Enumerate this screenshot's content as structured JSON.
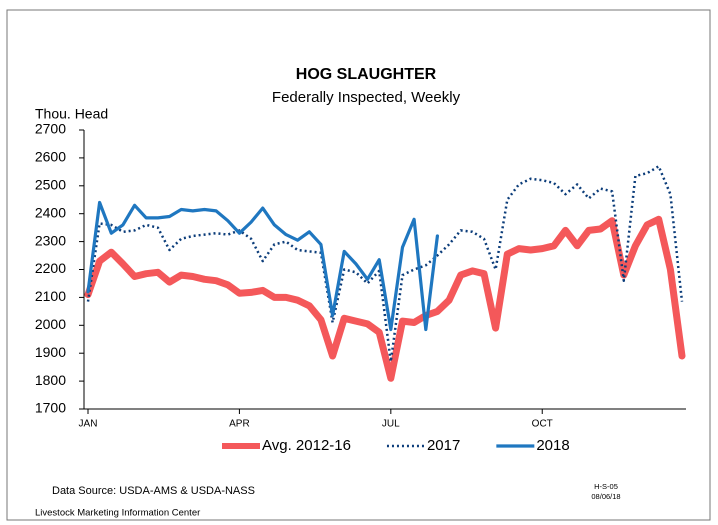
{
  "chart_data": {
    "type": "line",
    "title": "HOG SLAUGHTER",
    "subtitle": "Federally Inspected, Weekly",
    "y_label": "Thou. Head",
    "categories": [
      "JAN",
      null,
      null,
      null,
      null,
      null,
      null,
      null,
      null,
      null,
      null,
      null,
      null,
      "APR",
      null,
      null,
      null,
      null,
      null,
      null,
      null,
      null,
      null,
      null,
      null,
      null,
      "JUL",
      null,
      null,
      null,
      null,
      null,
      null,
      null,
      null,
      null,
      null,
      null,
      null,
      "OCT",
      null,
      null,
      null,
      null,
      null,
      null,
      null,
      null,
      null,
      null,
      null,
      null
    ],
    "series": [
      {
        "name": "Avg. 2012-16",
        "color": "#f4585a",
        "line_style": "solid",
        "width": 7,
        "values": [
          2110,
          2230,
          2262,
          2220,
          2175,
          2185,
          2190,
          2155,
          2180,
          2175,
          2165,
          2160,
          2145,
          2115,
          2118,
          2125,
          2100,
          2100,
          2090,
          2070,
          2020,
          1890,
          2025,
          2015,
          2005,
          1975,
          1810,
          2015,
          2010,
          2035,
          2050,
          2090,
          2180,
          2195,
          2185,
          1990,
          2255,
          2275,
          2270,
          2275,
          2285,
          2340,
          2285,
          2340,
          2345,
          2375,
          2180,
          2285,
          2360,
          2380,
          2200,
          1890
        ]
      },
      {
        "name": "2017",
        "color": "#0c3d7a",
        "line_style": "dotted",
        "width": 2.5,
        "values": [
          2085,
          2365,
          2360,
          2335,
          2340,
          2360,
          2350,
          2270,
          2310,
          2320,
          2325,
          2330,
          2325,
          2340,
          2310,
          2230,
          2290,
          2300,
          2270,
          2265,
          2260,
          2010,
          2200,
          2190,
          2150,
          2195,
          1870,
          2180,
          2200,
          2215,
          2250,
          2290,
          2340,
          2335,
          2310,
          2200,
          2450,
          2505,
          2525,
          2520,
          2510,
          2470,
          2505,
          2455,
          2490,
          2480,
          2160,
          2535,
          2545,
          2570,
          2470,
          2085
        ]
      },
      {
        "name": "2018",
        "color": "#1f77c0",
        "line_style": "solid",
        "width": 3.2,
        "values": [
          2120,
          2440,
          2330,
          2360,
          2430,
          2385,
          2385,
          2390,
          2415,
          2410,
          2415,
          2410,
          2375,
          2330,
          2370,
          2420,
          2360,
          2325,
          2305,
          2335,
          2290,
          2035,
          2265,
          2220,
          2165,
          2235,
          1985,
          2280,
          2380,
          1985,
          2320,
          null,
          null,
          null,
          null,
          null,
          null,
          null,
          null,
          null,
          null,
          null,
          null,
          null,
          null,
          null,
          null,
          null,
          null,
          null,
          null,
          null
        ]
      }
    ],
    "ylim": [
      1700,
      2700
    ],
    "yticks": [
      1700,
      1800,
      1900,
      2000,
      2100,
      2200,
      2300,
      2400,
      2500,
      2600,
      2700
    ],
    "grid": false,
    "legend": "bottom",
    "source": "Data Source:  USDA-AMS & USDA-NASS",
    "organization": "Livestock Marketing Information Center",
    "chart_id": "H-S-05",
    "date": "08/06/18"
  }
}
